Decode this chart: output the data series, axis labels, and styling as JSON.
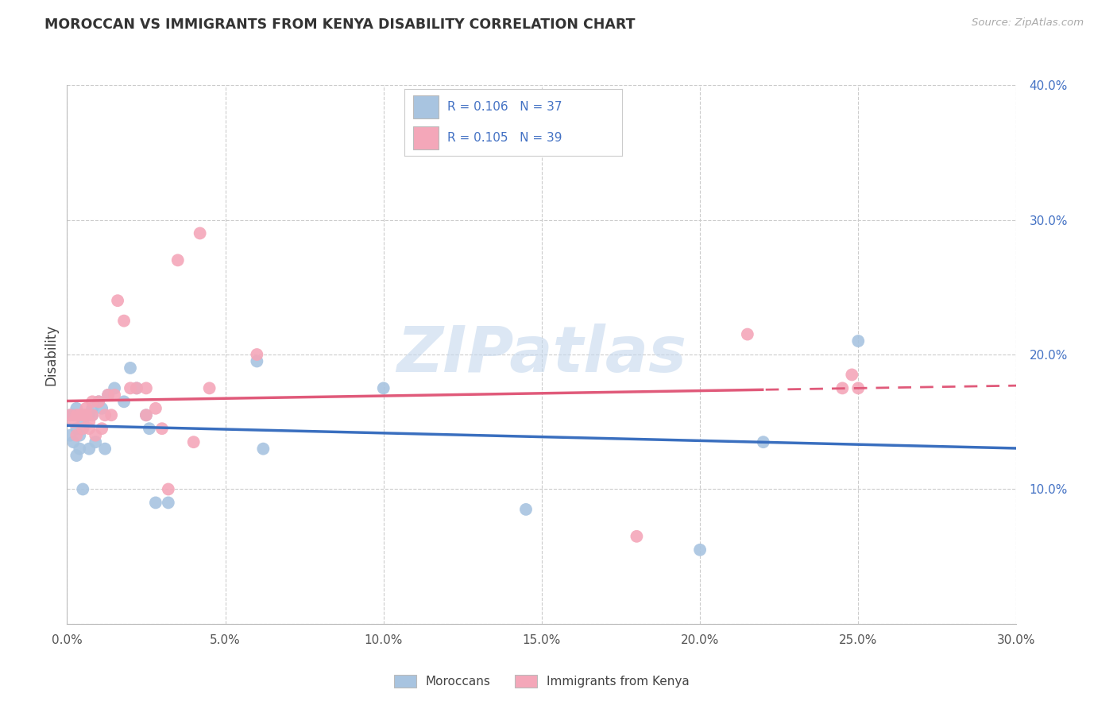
{
  "title": "MOROCCAN VS IMMIGRANTS FROM KENYA DISABILITY CORRELATION CHART",
  "source": "Source: ZipAtlas.com",
  "ylabel": "Disability",
  "xlim": [
    0.0,
    0.3
  ],
  "ylim": [
    0.0,
    0.4
  ],
  "xticks": [
    0.0,
    0.05,
    0.1,
    0.15,
    0.2,
    0.25,
    0.3
  ],
  "yticks": [
    0.0,
    0.1,
    0.2,
    0.3,
    0.4
  ],
  "blue_dot_color": "#a8c4e0",
  "pink_dot_color": "#f4a7b9",
  "blue_line_color": "#3a6fbf",
  "pink_line_color": "#e05a7a",
  "legend_text_color": "#4472c4",
  "blue_R": 0.106,
  "blue_N": 37,
  "pink_R": 0.105,
  "pink_N": 39,
  "legend_label_blue": "Moroccans",
  "legend_label_pink": "Immigrants from Kenya",
  "watermark_color": "#c5d8ed",
  "ytick_color": "#4472c4",
  "xtick_color": "#555555",
  "blue_x": [
    0.001,
    0.001,
    0.002,
    0.002,
    0.003,
    0.003,
    0.003,
    0.004,
    0.004,
    0.005,
    0.005,
    0.005,
    0.006,
    0.007,
    0.007,
    0.008,
    0.008,
    0.009,
    0.01,
    0.011,
    0.012,
    0.013,
    0.015,
    0.018,
    0.02,
    0.022,
    0.025,
    0.026,
    0.028,
    0.032,
    0.06,
    0.062,
    0.1,
    0.145,
    0.2,
    0.22,
    0.25
  ],
  "blue_y": [
    0.155,
    0.14,
    0.155,
    0.135,
    0.16,
    0.125,
    0.145,
    0.13,
    0.14,
    0.15,
    0.155,
    0.1,
    0.155,
    0.155,
    0.13,
    0.155,
    0.16,
    0.135,
    0.165,
    0.16,
    0.13,
    0.17,
    0.175,
    0.165,
    0.19,
    0.175,
    0.155,
    0.145,
    0.09,
    0.09,
    0.195,
    0.13,
    0.175,
    0.085,
    0.055,
    0.135,
    0.21
  ],
  "pink_x": [
    0.001,
    0.002,
    0.003,
    0.003,
    0.004,
    0.005,
    0.005,
    0.006,
    0.006,
    0.007,
    0.007,
    0.008,
    0.008,
    0.009,
    0.01,
    0.011,
    0.012,
    0.013,
    0.014,
    0.015,
    0.016,
    0.018,
    0.02,
    0.022,
    0.025,
    0.025,
    0.028,
    0.03,
    0.032,
    0.035,
    0.04,
    0.042,
    0.045,
    0.06,
    0.18,
    0.215,
    0.245,
    0.248,
    0.25
  ],
  "pink_y": [
    0.155,
    0.15,
    0.14,
    0.155,
    0.155,
    0.145,
    0.155,
    0.155,
    0.16,
    0.145,
    0.15,
    0.155,
    0.165,
    0.14,
    0.165,
    0.145,
    0.155,
    0.17,
    0.155,
    0.17,
    0.24,
    0.225,
    0.175,
    0.175,
    0.155,
    0.175,
    0.16,
    0.145,
    0.1,
    0.27,
    0.135,
    0.29,
    0.175,
    0.2,
    0.065,
    0.215,
    0.175,
    0.185,
    0.175
  ]
}
